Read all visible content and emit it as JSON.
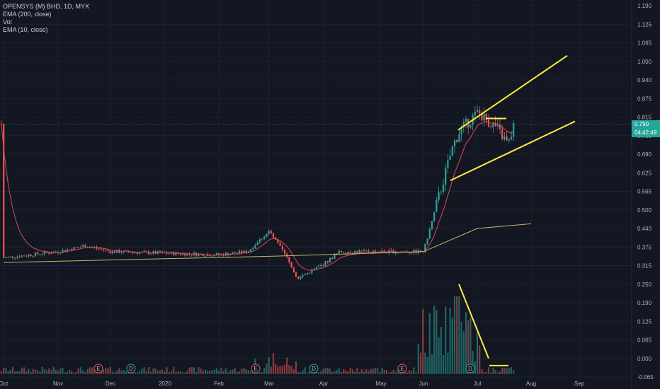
{
  "legend": {
    "symbol": "OPENSYS (M) BHD, 1D, MYX",
    "ema200": "EMA (200, close)",
    "vol": "Vol",
    "ema10": "EMA (10, close)"
  },
  "price_tag": {
    "value": "0.790",
    "countdown": "04:42:49",
    "color": "#26a69a"
  },
  "colors": {
    "up": "#26a69a",
    "down": "#ef5350",
    "ema200": "#c9b36b",
    "ema10": "#d64a5a",
    "trend": "#ffeb3b",
    "grid": "#1e2230",
    "bg": "#131722"
  },
  "chart_data": {
    "type": "candlestick",
    "title": "OPENSYS (M) BHD, 1D, MYX",
    "y_ticks": [
      "1.190",
      "1.125",
      "1.065",
      "1.000",
      "0.940",
      "0.875",
      "0.815",
      "0.750",
      "0.690",
      "0.625",
      "0.565",
      "0.500",
      "0.440",
      "0.375",
      "0.315",
      "0.250",
      "0.190",
      "0.125",
      "0.065",
      "0.000",
      "-0.065"
    ],
    "x_ticks": [
      "Oct",
      "Nov",
      "Dec",
      "2020",
      "Feb",
      "Mar",
      "Apr",
      "May",
      "Jun",
      "Jul",
      "Aug",
      "Sep"
    ],
    "event_markers": [
      {
        "label": "E",
        "date": "Nov"
      },
      {
        "label": "D",
        "date": "Dec"
      },
      {
        "label": "E",
        "date": "Mar"
      },
      {
        "label": "D",
        "date": "Apr"
      },
      {
        "label": "E",
        "date": "May"
      },
      {
        "label": "D",
        "date": "Jul"
      }
    ],
    "last_price": 0.79,
    "phases": [
      {
        "from": "Oct",
        "to": "Feb",
        "level": 0.36
      },
      {
        "from": "Mar",
        "high": 0.45
      },
      {
        "from": "Mar",
        "low": 0.27
      },
      {
        "from": "Apr",
        "to": "May",
        "level": 0.36
      },
      {
        "from": "Jun",
        "to": "Jul",
        "high": 0.83
      },
      {
        "date": "Jul",
        "close": 0.79
      }
    ],
    "ema200_points": [
      [
        "Oct",
        0.325
      ],
      [
        "Mar",
        0.345
      ],
      [
        "Jun",
        0.36
      ],
      [
        "Jul",
        0.44
      ],
      [
        "Aug",
        0.455
      ]
    ],
    "trend_lines": [
      {
        "from": [
          "Jun",
          0.77
        ],
        "to": [
          "Aug",
          1.02
        ]
      },
      {
        "from": [
          "Jun",
          0.6
        ],
        "to": [
          "Aug",
          0.8
        ]
      },
      {
        "from": [
          "Jul",
          0.81
        ],
        "to": [
          "Jul",
          0.81
        ]
      },
      {
        "from": [
          "Jun",
          0.25
        ],
        "to": [
          "Jul",
          0.0
        ]
      },
      {
        "from": [
          "Jul",
          -0.025
        ],
        "to": [
          "Jul",
          -0.025
        ]
      }
    ]
  }
}
